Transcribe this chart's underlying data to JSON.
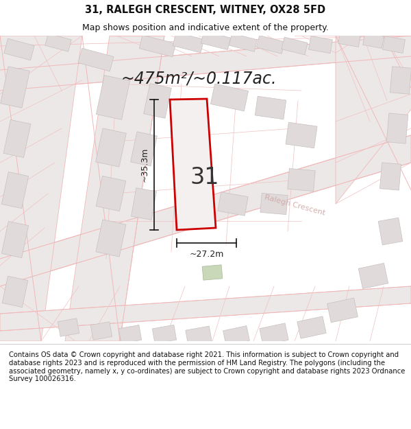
{
  "title": "31, RALEGH CRESCENT, WITNEY, OX28 5FD",
  "subtitle": "Map shows position and indicative extent of the property.",
  "area_text": "~475m²/~0.117ac.",
  "plot_number": "31",
  "width_label": "~27.2m",
  "height_label": "~35.3m",
  "street_label": "Ralegh Crescent",
  "footer": "Contains OS data © Crown copyright and database right 2021. This information is subject to Crown copyright and database rights 2023 and is reproduced with the permission of HM Land Registry. The polygons (including the associated geometry, namely x, y co-ordinates) are subject to Crown copyright and database rights 2023 Ordnance Survey 100026316.",
  "map_bg": "#f7f4f4",
  "road_line": "#f0b8b8",
  "parcel_line": "#e8a8a8",
  "building_fill": "#e0dada",
  "building_edge": "#c8c0c0",
  "plot_fill": "#f5f0f0",
  "plot_edge": "#cc0000",
  "green_fill": "#c8d8b8",
  "green_edge": "#a8b898",
  "title_fontsize": 10.5,
  "subtitle_fontsize": 9,
  "area_fontsize": 17,
  "plot_num_fontsize": 24,
  "label_fontsize": 9,
  "street_fontsize": 8,
  "footer_fontsize": 7.2
}
